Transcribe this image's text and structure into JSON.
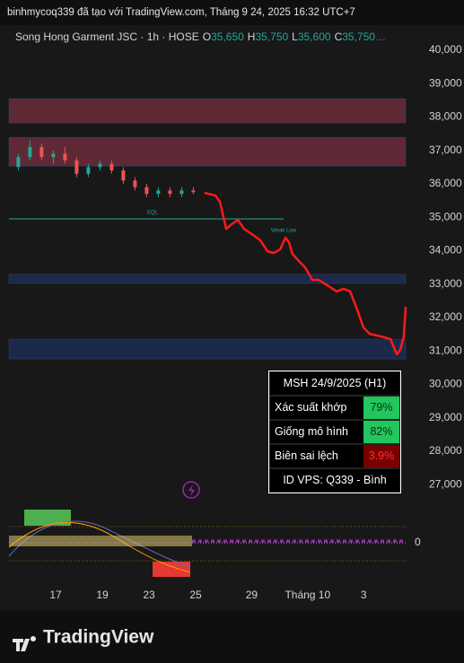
{
  "chart_data": {
    "type": "line",
    "header": "binhmycoq339 đã tạo với TradingView.com, Tháng 9 24, 2025 16:32 UTC+7",
    "title": "Song Hong Garment JSC · 1h · HOSE",
    "ohlc": [
      {
        "key": "O",
        "value": 35650,
        "label": "35,650"
      },
      {
        "key": "H",
        "value": 35750,
        "label": "35,750"
      },
      {
        "key": "L",
        "value": 35600,
        "label": "35,600"
      },
      {
        "key": "C",
        "value": 35750,
        "label": "35,750…"
      }
    ],
    "ylim": [
      26600,
      40750
    ],
    "yticks": [
      {
        "value": 40000,
        "label": "40,000"
      },
      {
        "value": 39000,
        "label": "39,000"
      },
      {
        "value": 38000,
        "label": "38,000"
      },
      {
        "value": 37000,
        "label": "37,000"
      },
      {
        "value": 36000,
        "label": "36,000"
      },
      {
        "value": 35000,
        "label": "35,000"
      },
      {
        "value": 34000,
        "label": "34,000"
      },
      {
        "value": 33000,
        "label": "33,000"
      },
      {
        "value": 32000,
        "label": "32,000"
      },
      {
        "value": 31000,
        "label": "31,000"
      },
      {
        "value": 30000,
        "label": "30,000"
      },
      {
        "value": 29000,
        "label": "29,000"
      },
      {
        "value": 28000,
        "label": "28,000"
      },
      {
        "value": 27000,
        "label": "27,000"
      }
    ],
    "xlim": [
      0,
      17
    ],
    "xticks": [
      {
        "value": 2,
        "label": "17"
      },
      {
        "value": 4,
        "label": "19"
      },
      {
        "value": 6,
        "label": "23"
      },
      {
        "value": 8,
        "label": "25"
      },
      {
        "value": 10.4,
        "label": "29"
      },
      {
        "value": 12.8,
        "label": "Tháng 10"
      },
      {
        "value": 15.2,
        "label": "3"
      }
    ],
    "y2lim": [
      -1,
      1
    ],
    "y2ticks": [
      0
    ],
    "grid": false,
    "bands": [
      {
        "from": 38550,
        "to": 37820,
        "color": "#6b2d3a"
      },
      {
        "from": 37390,
        "to": 36530,
        "color": "#6b2d3a"
      },
      {
        "from": 33290,
        "to": 33020,
        "color": "#1c2c54"
      },
      {
        "from": 31350,
        "to": 30760,
        "color": "#1c2c54"
      }
    ],
    "candles": {
      "x": [
        0.4,
        0.9,
        1.4,
        1.9,
        2.4,
        2.9,
        3.4,
        3.9,
        4.4,
        4.9,
        5.4,
        5.9,
        6.4,
        6.9,
        7.4,
        7.9
      ],
      "open": [
        36500,
        36800,
        37100,
        36800,
        36900,
        36700,
        36300,
        36500,
        36600,
        36400,
        36100,
        35900,
        35700,
        35800,
        35700,
        35800
      ],
      "high": [
        36900,
        37300,
        37200,
        37000,
        37100,
        36800,
        36600,
        36700,
        36700,
        36500,
        36200,
        36000,
        35900,
        35900,
        35900,
        35900
      ],
      "low": [
        36400,
        36700,
        36700,
        36600,
        36600,
        36200,
        36200,
        36400,
        36300,
        36000,
        35800,
        35600,
        35600,
        35600,
        35600,
        35700
      ],
      "close": [
        36800,
        37100,
        36800,
        36900,
        36700,
        36300,
        36500,
        36600,
        36400,
        36100,
        35900,
        35700,
        35800,
        35700,
        35800,
        35750
      ]
    },
    "series": [
      {
        "color": "#ff1a1a",
        "x": [
          8.38,
          8.85,
          9.04,
          9.31,
          9.54,
          9.81,
          10.08,
          10.46,
          10.77,
          11.08,
          11.35,
          11.62,
          11.85,
          12.0,
          12.15,
          12.38,
          12.69,
          13.0,
          13.27,
          13.65,
          14.04,
          14.35,
          14.62,
          14.92,
          15.19,
          15.46,
          15.96,
          16.35,
          16.62,
          16.77,
          16.92,
          17.0
        ],
        "values": [
          35730,
          35650,
          35460,
          34650,
          34790,
          34920,
          34650,
          34470,
          34310,
          33980,
          33930,
          34040,
          34390,
          34250,
          33900,
          33720,
          33500,
          33125,
          33125,
          32960,
          32780,
          32860,
          32780,
          32240,
          31700,
          31510,
          31430,
          31350,
          30900,
          31030,
          31430,
          32320
        ]
      }
    ],
    "annotations": [
      "EQL",
      "Weak Low"
    ],
    "panel": {
      "title": "MSH 24/9/2025 (H1)",
      "rows": [
        [
          "Xác suất khớp",
          "79%"
        ],
        [
          "Giống mô hình",
          "82%"
        ],
        [
          "Biên sai lệch",
          "3.9%"
        ]
      ],
      "footer": "ID VPS: Q339 - Bình"
    },
    "brand": "TradingView"
  }
}
